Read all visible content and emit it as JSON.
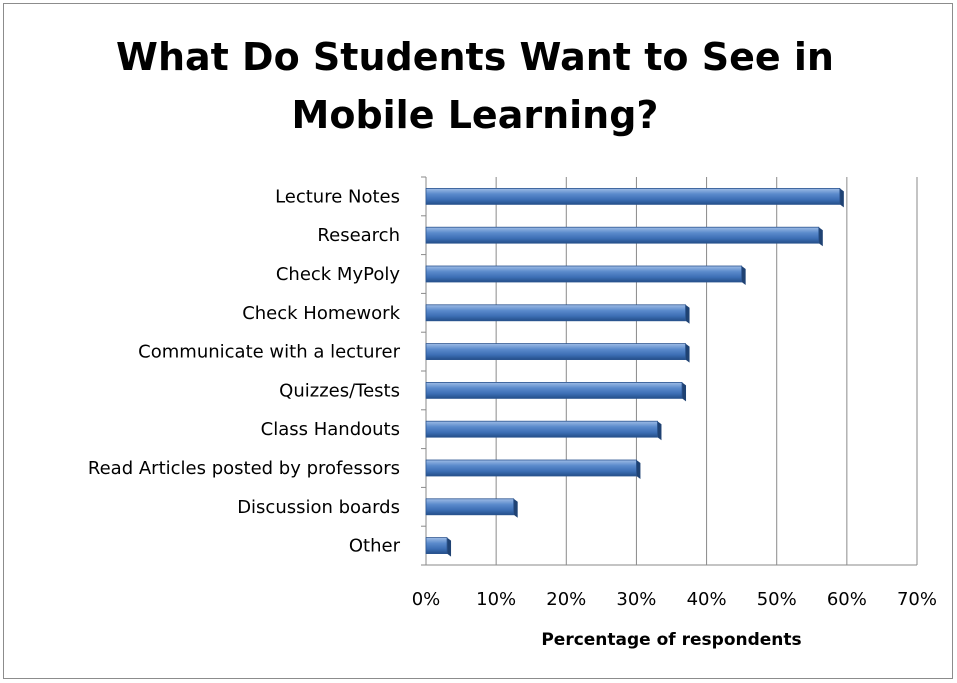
{
  "chart_data": {
    "type": "bar",
    "orientation": "horizontal",
    "title": "What Do Students Want to See in\nMobile Learning?",
    "xlabel": "Percentage of respondents",
    "ylabel": "",
    "categories": [
      "Lecture Notes",
      "Research",
      "Check MyPoly",
      "Check Homework",
      "Communicate with a lecturer",
      "Quizzes/Tests",
      "Class Handouts",
      "Read Articles posted by professors",
      "Discussion boards",
      "Other"
    ],
    "values": [
      59,
      56,
      45,
      37,
      37,
      36.5,
      33,
      30,
      12.5,
      3
    ],
    "xlim": [
      0,
      70
    ],
    "xticks": [
      "0%",
      "10%",
      "20%",
      "30%",
      "40%",
      "50%",
      "60%",
      "70%"
    ],
    "grid": "vertical",
    "legend": "none",
    "bar_color": "#4f81bd"
  }
}
